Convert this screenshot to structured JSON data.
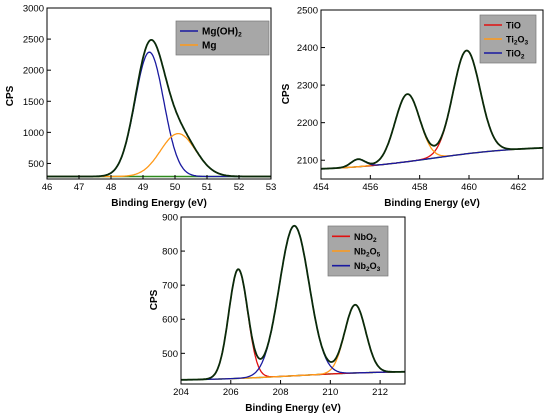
{
  "chart_data": [
    {
      "type": "line",
      "title": "",
      "xlabel": "Binding Energy (eV)",
      "ylabel": "CPS",
      "xlim": [
        46,
        53
      ],
      "ylim": [
        250,
        3000
      ],
      "x_ticks": [
        "46",
        "47",
        "48",
        "49",
        "50",
        "51",
        "52",
        "53"
      ],
      "y_ticks": [
        "500",
        "1000",
        "1500",
        "2000",
        "2500",
        "3000"
      ],
      "legend": "top-right",
      "baseline": 290,
      "peaks": [
        {
          "name": "Mg(OH)2",
          "center": 49.2,
          "height": 2000,
          "width": 0.45,
          "color": "#1a1aa0"
        },
        {
          "name": "Mg",
          "center": 50.1,
          "height": 690,
          "width": 0.55,
          "color": "#ff9a1a"
        }
      ],
      "legend_entries": [
        {
          "text": "Mg(OH)",
          "sub": "2",
          "color": "#1a1aa0"
        },
        {
          "text": "Mg",
          "sub": "",
          "color": "#ff9a1a"
        }
      ]
    },
    {
      "type": "line",
      "title": "",
      "xlabel": "Binding Energy (eV)",
      "ylabel": "CPS",
      "xlim": [
        454,
        463
      ],
      "ylim": [
        2050,
        2500
      ],
      "x_ticks": [
        "454",
        "456",
        "458",
        "460",
        "462"
      ],
      "y_ticks": [
        "2100",
        "2200",
        "2300",
        "2400",
        "2500"
      ],
      "legend": "top-right",
      "baseline_start": 2072,
      "baseline_end": 2138,
      "peaks": [
        {
          "name": "TiO",
          "center": 459.9,
          "height": 275,
          "width": 0.55,
          "color": "#e01010"
        },
        {
          "name": "Ti2O3",
          "center": 457.5,
          "height": 180,
          "width": 0.5,
          "color": "#ff9a1a"
        },
        {
          "name": "TiO2",
          "center": 455.5,
          "height": 20,
          "width": 0.28,
          "color": "#1a1aa0"
        }
      ],
      "legend_entries": [
        {
          "text": "TiO",
          "sub": "",
          "post": "",
          "color": "#e01010"
        },
        {
          "text": "Ti",
          "sub": "2",
          "post": "O",
          "sub2": "3",
          "color": "#ff9a1a"
        },
        {
          "text": "TiO",
          "sub": "2",
          "post": "",
          "color": "#1a1aa0"
        }
      ]
    },
    {
      "type": "line",
      "title": "",
      "xlabel": "Binding Energy (eV)",
      "ylabel": "CPS",
      "xlim": [
        204,
        213
      ],
      "ylim": [
        410,
        900
      ],
      "x_ticks": [
        "204",
        "206",
        "208",
        "210",
        "212"
      ],
      "y_ticks": [
        "500",
        "600",
        "700",
        "800",
        "900"
      ],
      "legend": "top-right",
      "baseline_start": 420,
      "baseline_end": 448,
      "peaks": [
        {
          "name": "NbO2",
          "center": 206.3,
          "height": 320,
          "width": 0.38,
          "color": "#e01010"
        },
        {
          "name": "Nb2O5",
          "center": 211.0,
          "height": 200,
          "width": 0.42,
          "color": "#ff9a1a"
        },
        {
          "name": "Nb2O3",
          "center": 208.55,
          "height": 440,
          "width": 0.6,
          "color": "#1a1aa0"
        }
      ],
      "legend_entries": [
        {
          "text": "NbO",
          "sub": "2",
          "post": "",
          "color": "#e01010"
        },
        {
          "text": "Nb",
          "sub": "2",
          "post": "O",
          "sub2": "5",
          "color": "#ff9a1a"
        },
        {
          "text": "Nb",
          "sub": "2",
          "post": "O",
          "sub2": "3",
          "color": "#1a1aa0"
        }
      ]
    }
  ],
  "colors": {
    "envelope": "#0a2a0a",
    "background_line": "#2e8b1e"
  }
}
